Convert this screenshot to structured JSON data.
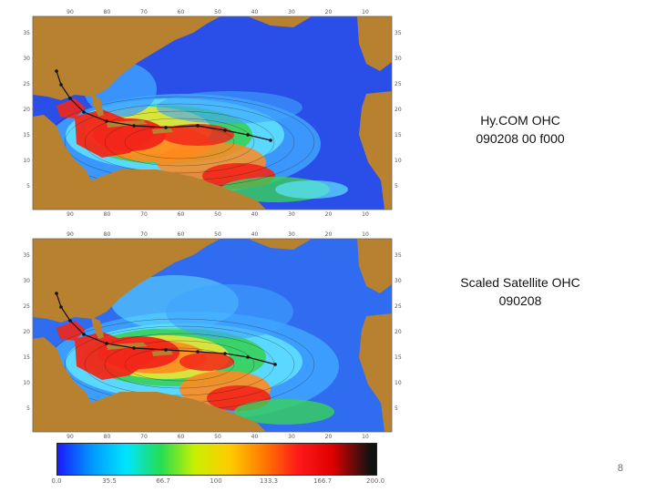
{
  "slide": {
    "page_number": "8"
  },
  "maps": [
    {
      "id": "hycom",
      "caption_line1": "Hy.COM OHC",
      "caption_line2": "090208 00 f000"
    },
    {
      "id": "satellite",
      "caption_line1": "Scaled Satellite OHC",
      "caption_line2": "090208"
    }
  ],
  "map_axes": {
    "lon_ticks": [
      "90",
      "80",
      "70",
      "60",
      "50",
      "40",
      "30",
      "20",
      "10"
    ],
    "lat_ticks": [
      "35",
      "30",
      "25",
      "20",
      "15",
      "10",
      "5"
    ]
  },
  "colorbar": {
    "labels": [
      "0.0",
      "35.5",
      "66.7",
      "100",
      "133.3",
      "166.7",
      "200.0"
    ],
    "colors": [
      "#1a1aff",
      "#0099ff",
      "#00e5ff",
      "#22dd55",
      "#c8f000",
      "#ffcc00",
      "#ff7a00",
      "#ff1a1a",
      "#e00000",
      "#111111"
    ]
  },
  "palette": {
    "land": "#b8812f",
    "deep_blue": "#2a4fe8",
    "mid_blue": "#3fa3ff",
    "cyan": "#5fe3ff",
    "green": "#38d25a",
    "yellow": "#e8e63a",
    "orange": "#ff8a1f",
    "red": "#f2261a"
  }
}
